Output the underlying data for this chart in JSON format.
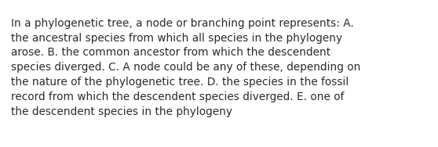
{
  "text": "In a phylogenetic tree, a node or branching point represents: A.\nthe ancestral species from which all species in the phylogeny\narose. B. the common ancestor from which the descendent\nspecies diverged. C. A node could be any of these, depending on\nthe nature of the phylogenetic tree. D. the species in the fossil\nrecord from which the descendent species diverged. E. one of\nthe descendent species in the phylogeny",
  "background_color": "#ffffff",
  "text_color": "#2b2b2b",
  "font_size": 9.8,
  "fig_width": 5.58,
  "fig_height": 1.88,
  "dpi": 100
}
